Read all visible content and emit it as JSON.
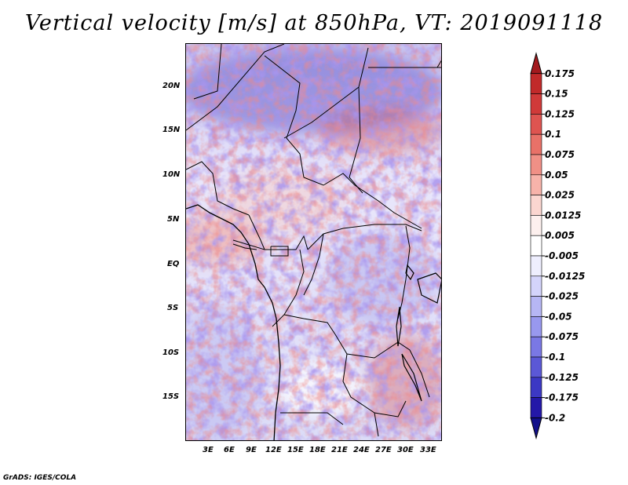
{
  "title": "Vertical velocity [m/s] at 850hPa, VT: 2019091118",
  "footer": "GrADS: IGES/COLA",
  "map": {
    "lat_labels": [
      "20N",
      "15N",
      "10N",
      "5N",
      "EQ",
      "5S",
      "10S",
      "15S"
    ],
    "lon_labels": [
      "3E",
      "6E",
      "9E",
      "12E",
      "15E",
      "18E",
      "21E",
      "24E",
      "27E",
      "30E",
      "33E"
    ],
    "variable": "Vertical velocity",
    "units": "m/s",
    "level": "850hPa",
    "valid_time": "2019091118"
  },
  "colorbar": {
    "labels": [
      "0.175",
      "0.15",
      "0.125",
      "0.1",
      "0.075",
      "0.05",
      "0.025",
      "0.0125",
      "0.005",
      "-0.005",
      "-0.0125",
      "-0.025",
      "-0.05",
      "-0.075",
      "-0.1",
      "-0.125",
      "-0.175",
      "-0.2"
    ],
    "colors": [
      "#a31a1e",
      "#c12a2a",
      "#d03a39",
      "#de5450",
      "#e87168",
      "#f09086",
      "#f7b3aa",
      "#fbd6d0",
      "#fdf0ee",
      "#ffffff",
      "#eeeefe",
      "#d4d4fb",
      "#b6b6f4",
      "#9898ee",
      "#7a78e4",
      "#5b58d6",
      "#3c38c4",
      "#2418a8",
      "#12108a"
    ]
  }
}
